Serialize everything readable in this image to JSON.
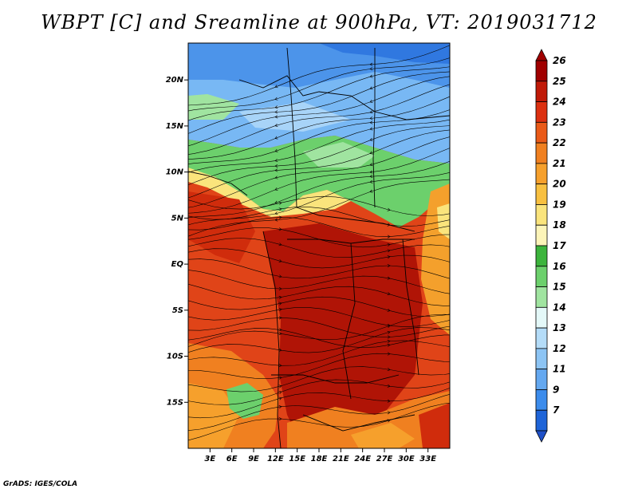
{
  "title": "WBPT [C] and Sreamline at 900hPa, VT: 2019031712",
  "credit": "GrADS: IGES/COLA",
  "map": {
    "variable": "Wet-bulb potential temperature",
    "units": "C",
    "level": "900hPa",
    "valid_time": "2019031712",
    "lon_range": [
      0,
      36
    ],
    "lat_range": [
      -20,
      24
    ],
    "lat_ticks": [
      {
        "value": 20,
        "label": "20N"
      },
      {
        "value": 15,
        "label": "15N"
      },
      {
        "value": 10,
        "label": "10N"
      },
      {
        "value": 5,
        "label": "5N"
      },
      {
        "value": 0,
        "label": "EQ"
      },
      {
        "value": -5,
        "label": "5S"
      },
      {
        "value": -10,
        "label": "10S"
      },
      {
        "value": -15,
        "label": "15S"
      }
    ],
    "lon_ticks": [
      {
        "value": 3,
        "label": "3E"
      },
      {
        "value": 6,
        "label": "6E"
      },
      {
        "value": 9,
        "label": "9E"
      },
      {
        "value": 12,
        "label": "12E"
      },
      {
        "value": 15,
        "label": "15E"
      },
      {
        "value": 18,
        "label": "18E"
      },
      {
        "value": 21,
        "label": "21E"
      },
      {
        "value": 24,
        "label": "24E"
      },
      {
        "value": 27,
        "label": "27E"
      },
      {
        "value": 30,
        "label": "30E"
      },
      {
        "value": 33,
        "label": "33E"
      }
    ]
  },
  "colorbar": {
    "levels": [
      {
        "label": "26",
        "color": "#a00000"
      },
      {
        "label": "25",
        "color": "#c01a08"
      },
      {
        "label": "24",
        "color": "#dc3010"
      },
      {
        "label": "23",
        "color": "#ea5a18"
      },
      {
        "label": "22",
        "color": "#f08020"
      },
      {
        "label": "21",
        "color": "#f6a02c"
      },
      {
        "label": "20",
        "color": "#f8c040"
      },
      {
        "label": "19",
        "color": "#fae47c"
      },
      {
        "label": "18",
        "color": "#fcf4b8"
      },
      {
        "label": "17",
        "color": "#3cb43c"
      },
      {
        "label": "16",
        "color": "#6cd06c"
      },
      {
        "label": "15",
        "color": "#a0e4a0"
      },
      {
        "label": "14",
        "color": "#e4f8f8"
      },
      {
        "label": "13",
        "color": "#b4dcf8"
      },
      {
        "label": "12",
        "color": "#8cc4f4"
      },
      {
        "label": "11",
        "color": "#64a8f0"
      },
      {
        "label": "9",
        "color": "#3c8cec"
      },
      {
        "label": "7",
        "color": "#1e64d8"
      }
    ],
    "top_color": "#a00000",
    "bottom_color": "#1e50c8"
  }
}
